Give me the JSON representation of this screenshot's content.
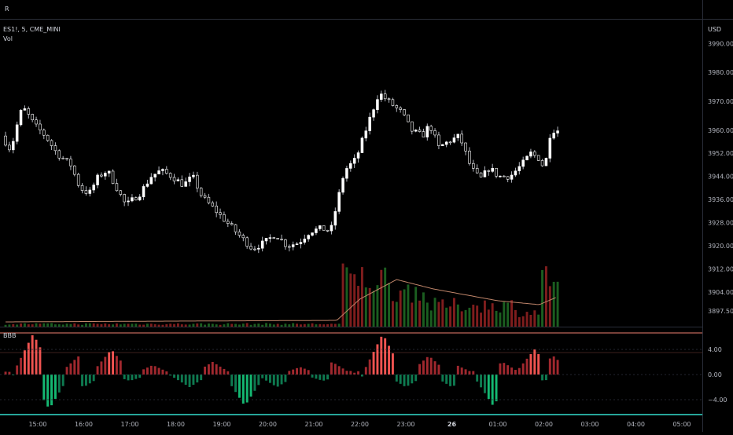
{
  "header": {
    "menu_label": "R"
  },
  "legend": {
    "symbol": "ES1!, 5, CME_MINI",
    "volume_label": "Vol",
    "oscillator_label": "BBB"
  },
  "currency": "USD",
  "colors": {
    "background": "#000000",
    "up_candle": "#ffffff",
    "down_candle": "#000000",
    "wick": "#b2b5be",
    "volume_up": "#1b5e20",
    "volume_down": "#7f1d1d",
    "volume_ma": "#c0856a",
    "osc_strong_up": "#ef5350",
    "osc_up": "#a1282e",
    "osc_strong_down": "#14b872",
    "osc_down": "#0e7a50",
    "separator": "#f08070",
    "bottom_line": "#26a69a"
  },
  "chart_data": [
    {
      "type": "candlestick",
      "title": "",
      "symbol": "ES1!, 5, CME_MINI",
      "currency": "USD",
      "ylim": [
        3892,
        3998
      ],
      "price_ticks": [
        "3990.00",
        "3980.00",
        "3970.00",
        "3960.00",
        "3952.00",
        "3944.00",
        "3936.00",
        "3928.00",
        "3920.00",
        "3912.00",
        "3904.00",
        "3897.50"
      ],
      "time_ticks": [
        {
          "label": "15:00",
          "hour": 15
        },
        {
          "label": "16:00",
          "hour": 16
        },
        {
          "label": "17:00",
          "hour": 17
        },
        {
          "label": "18:00",
          "hour": 18
        },
        {
          "label": "19:00",
          "hour": 19
        },
        {
          "label": "20:00",
          "hour": 20
        },
        {
          "label": "21:00",
          "hour": 21
        },
        {
          "label": "22:00",
          "hour": 22
        },
        {
          "label": "23:00",
          "hour": 23
        },
        {
          "label": "26",
          "hour": 24
        },
        {
          "label": "01:00",
          "hour": 25
        },
        {
          "label": "02:00",
          "hour": 26
        },
        {
          "label": "03:00",
          "hour": 27
        },
        {
          "label": "04:00",
          "hour": 28
        },
        {
          "label": "05:00",
          "hour": 29
        }
      ],
      "anchors": [
        [
          14.3,
          3958
        ],
        [
          14.5,
          3953
        ],
        [
          14.6,
          3960
        ],
        [
          14.75,
          3968
        ],
        [
          14.85,
          3966
        ],
        [
          15.0,
          3962
        ],
        [
          15.25,
          3958
        ],
        [
          15.5,
          3952
        ],
        [
          15.8,
          3948
        ],
        [
          16.0,
          3940
        ],
        [
          16.2,
          3938
        ],
        [
          16.4,
          3944
        ],
        [
          16.6,
          3946
        ],
        [
          16.8,
          3940
        ],
        [
          17.0,
          3934
        ],
        [
          17.3,
          3938
        ],
        [
          17.55,
          3944
        ],
        [
          17.75,
          3946
        ],
        [
          18.0,
          3944
        ],
        [
          18.25,
          3941
        ],
        [
          18.45,
          3944
        ],
        [
          18.65,
          3937
        ],
        [
          18.9,
          3933
        ],
        [
          19.2,
          3928
        ],
        [
          19.5,
          3923
        ],
        [
          19.75,
          3919
        ],
        [
          20.0,
          3921
        ],
        [
          20.25,
          3924
        ],
        [
          20.5,
          3920
        ],
        [
          20.75,
          3921
        ],
        [
          21.0,
          3925
        ],
        [
          21.25,
          3926
        ],
        [
          21.45,
          3925
        ],
        [
          21.55,
          3932
        ],
        [
          21.75,
          3946
        ],
        [
          22.0,
          3950
        ],
        [
          22.3,
          3964
        ],
        [
          22.5,
          3973
        ],
        [
          22.7,
          3970
        ],
        [
          23.0,
          3966
        ],
        [
          23.2,
          3960
        ],
        [
          23.45,
          3958
        ],
        [
          23.6,
          3962
        ],
        [
          23.8,
          3954
        ],
        [
          24.0,
          3956
        ],
        [
          24.25,
          3958
        ],
        [
          24.5,
          3947
        ],
        [
          24.7,
          3943
        ],
        [
          24.9,
          3947
        ],
        [
          25.1,
          3944
        ],
        [
          25.35,
          3944
        ],
        [
          25.6,
          3948
        ],
        [
          25.8,
          3952
        ],
        [
          26.0,
          3950
        ],
        [
          26.1,
          3946
        ],
        [
          26.2,
          3958
        ],
        [
          26.3,
          3960
        ]
      ],
      "candles": {
        "start_hour": 14.3,
        "end_hour": 26.3,
        "interval_minutes": 5
      }
    },
    {
      "type": "bar",
      "title": "Vol",
      "description_values": "relative volume, 0-1 scale",
      "segments": [
        {
          "from_hour": 14.3,
          "to_hour": 21.55,
          "level": 0.04
        },
        {
          "from_hour": 21.55,
          "to_hour": 22.6,
          "level": 0.72
        },
        {
          "from_hour": 22.6,
          "to_hour": 23.4,
          "level": 0.55
        },
        {
          "from_hour": 23.4,
          "to_hour": 25.3,
          "level": 0.32
        },
        {
          "from_hour": 25.3,
          "to_hour": 25.9,
          "level": 0.22
        },
        {
          "from_hour": 25.9,
          "to_hour": 26.25,
          "level": 0.72
        }
      ],
      "ma_anchors": [
        [
          14.3,
          0.06
        ],
        [
          21.5,
          0.08
        ],
        [
          22.0,
          0.35
        ],
        [
          22.8,
          0.6
        ],
        [
          23.6,
          0.48
        ],
        [
          25.0,
          0.33
        ],
        [
          25.9,
          0.28
        ],
        [
          26.3,
          0.38
        ]
      ]
    },
    {
      "type": "bar",
      "title": "BBB",
      "ylim": [
        -6.5,
        6.5
      ],
      "y_ticks": [
        "4.00",
        "0.00",
        "−4.00"
      ],
      "positive_peaks": [
        [
          14.9,
          6.5
        ],
        [
          15.9,
          3.0
        ],
        [
          16.6,
          4.0
        ],
        [
          17.5,
          1.5
        ],
        [
          18.8,
          2.0
        ],
        [
          20.7,
          1.2
        ],
        [
          21.4,
          2.0
        ],
        [
          22.5,
          6.5
        ],
        [
          23.5,
          3.0
        ],
        [
          24.1,
          1.5
        ],
        [
          25.1,
          2.0
        ],
        [
          25.8,
          4.0
        ],
        [
          26.2,
          3.0
        ]
      ],
      "negative_troughs": [
        [
          15.25,
          -5.5
        ],
        [
          16.0,
          -2.0
        ],
        [
          17.0,
          -1.0
        ],
        [
          18.3,
          -2.0
        ],
        [
          19.5,
          -5.0
        ],
        [
          20.2,
          -2.0
        ],
        [
          21.2,
          -1.0
        ],
        [
          23.0,
          -2.0
        ],
        [
          24.0,
          -2.0
        ],
        [
          24.9,
          -5.0
        ],
        [
          26.0,
          -1.0
        ]
      ]
    }
  ]
}
